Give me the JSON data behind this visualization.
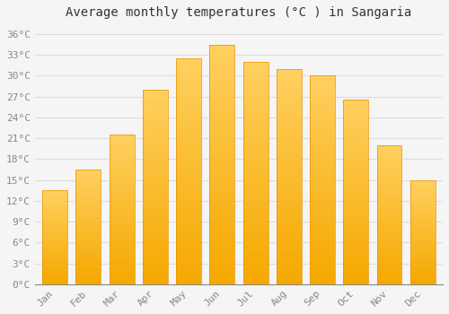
{
  "title": "Average monthly temperatures (°C ) in Sangaria",
  "months": [
    "Jan",
    "Feb",
    "Mar",
    "Apr",
    "May",
    "Jun",
    "Jul",
    "Aug",
    "Sep",
    "Oct",
    "Nov",
    "Dec"
  ],
  "values": [
    13.5,
    16.5,
    21.5,
    28.0,
    32.5,
    34.5,
    32.0,
    31.0,
    30.0,
    26.5,
    20.0,
    15.0
  ],
  "bar_color_top": "#FFD060",
  "bar_color_bottom": "#F5A800",
  "bar_edge_color": "#E89000",
  "background_color": "#F5F5F5",
  "plot_bg_color": "#F5F5F5",
  "grid_color": "#DDDDDD",
  "ylabel_ticks": [
    0,
    3,
    6,
    9,
    12,
    15,
    18,
    21,
    24,
    27,
    30,
    33,
    36
  ],
  "ylim": [
    0,
    37.5
  ],
  "title_fontsize": 10,
  "tick_fontsize": 8,
  "font_family": "monospace",
  "tick_color": "#888888",
  "title_color": "#333333"
}
